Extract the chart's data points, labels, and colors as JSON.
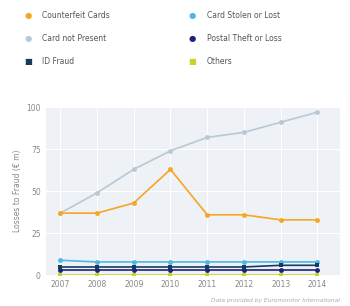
{
  "years": [
    2007,
    2008,
    2009,
    2010,
    2011,
    2012,
    2013,
    2014
  ],
  "counterfeit_cards": [
    37,
    37,
    43,
    63,
    36,
    36,
    33,
    33
  ],
  "card_not_present": [
    37,
    49,
    63,
    74,
    82,
    85,
    91,
    97
  ],
  "id_fraud": [
    5,
    5,
    5,
    5,
    5,
    5,
    6,
    6
  ],
  "card_stolen_or_lost": [
    9,
    8,
    8,
    8,
    8,
    8,
    8,
    8
  ],
  "postal_theft_or_loss": [
    3,
    3,
    3,
    3,
    3,
    3,
    3,
    3
  ],
  "others": [
    0.3,
    0.3,
    0.3,
    0.3,
    0.3,
    0.3,
    0.3,
    0.3
  ],
  "colors": {
    "counterfeit_cards": "#f5a623",
    "card_not_present": "#b8c8d4",
    "id_fraud": "#1a3a5c",
    "card_stolen_or_lost": "#4db8e8",
    "postal_theft_or_loss": "#1a237e",
    "others": "#c8d42a"
  },
  "ylabel": "Losses to Fraud (€ m)",
  "ylim": [
    0,
    100
  ],
  "yticks": [
    0,
    25,
    50,
    75,
    100
  ],
  "bg_color": "#eef2f7",
  "grid_color": "#ffffff",
  "footnote": "Data provided by Euromonitor International",
  "legend": [
    {
      "label": "Counterfeit Cards",
      "color": "#f5a623",
      "marker": "o"
    },
    {
      "label": "Card Stolen or Lost",
      "color": "#4db8e8",
      "marker": "o"
    },
    {
      "label": "Card not Present",
      "color": "#b8c8d4",
      "marker": "o"
    },
    {
      "label": "Postal Theft or Loss",
      "color": "#1a237e",
      "marker": "o"
    },
    {
      "label": "ID Fraud",
      "color": "#1a3a5c",
      "marker": "s"
    },
    {
      "label": "Others",
      "color": "#c8d42a",
      "marker": "s"
    }
  ]
}
